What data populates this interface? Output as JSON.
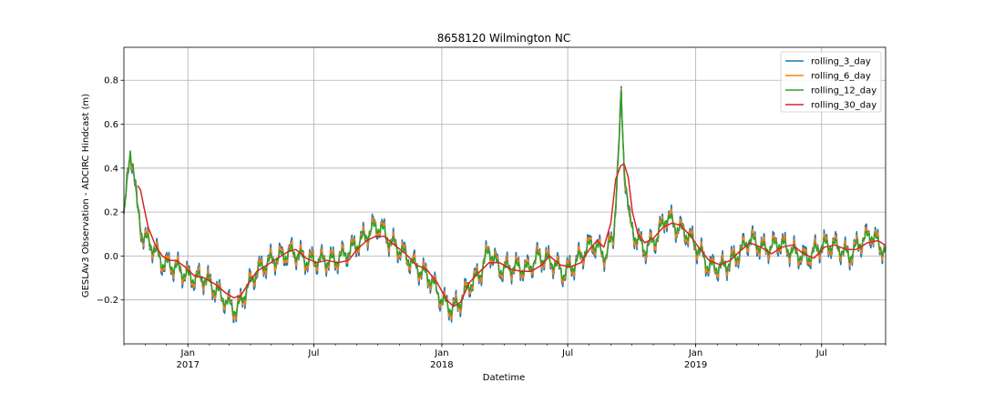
{
  "chart_data": {
    "type": "line",
    "title": "8658120 Wilmington NC",
    "xlabel": "Datetime",
    "ylabel": "GESLAv3 Observation - ADCIRC Hindcast (m)",
    "xlim": [
      "2016-10-01",
      "2019-10-01"
    ],
    "ylim": [
      -0.4,
      0.95
    ],
    "grid": true,
    "legend_position": "top-right",
    "y_ticks": [
      -0.2,
      0.0,
      0.2,
      0.4,
      0.6,
      0.8
    ],
    "y_tick_labels": [
      "−0.2",
      "0.0",
      "0.2",
      "0.4",
      "0.6",
      "0.8"
    ],
    "x_ticks": [
      {
        "date": "2017-01-01",
        "label": "Jan",
        "sublabel": "2017"
      },
      {
        "date": "2017-07-01",
        "label": "Jul",
        "sublabel": ""
      },
      {
        "date": "2018-01-01",
        "label": "Jan",
        "sublabel": "2018"
      },
      {
        "date": "2018-07-01",
        "label": "Jul",
        "sublabel": ""
      },
      {
        "date": "2019-01-01",
        "label": "Jan",
        "sublabel": "2019"
      },
      {
        "date": "2019-07-01",
        "label": "Jul",
        "sublabel": ""
      }
    ],
    "series": [
      {
        "name": "rolling_3_day",
        "color": "#1f77b4",
        "window_days": 3
      },
      {
        "name": "rolling_6_day",
        "color": "#ff7f0e",
        "window_days": 6
      },
      {
        "name": "rolling_12_day",
        "color": "#2ca02c",
        "window_days": 12
      },
      {
        "name": "rolling_30_day",
        "color": "#d62728",
        "window_days": 30
      }
    ],
    "trend": [
      [
        "2016-10-01",
        0.18
      ],
      [
        "2016-10-05",
        0.3
      ],
      [
        "2016-10-10",
        0.48
      ],
      [
        "2016-10-14",
        0.42
      ],
      [
        "2016-10-20",
        0.22
      ],
      [
        "2016-10-28",
        0.09
      ],
      [
        "2016-11-10",
        0.05
      ],
      [
        "2016-11-25",
        -0.03
      ],
      [
        "2016-12-15",
        -0.05
      ],
      [
        "2017-01-05",
        -0.1
      ],
      [
        "2017-01-25",
        -0.1
      ],
      [
        "2017-02-15",
        -0.17
      ],
      [
        "2017-03-01",
        -0.22
      ],
      [
        "2017-03-12",
        -0.25
      ],
      [
        "2017-03-25",
        -0.16
      ],
      [
        "2017-04-10",
        -0.07
      ],
      [
        "2017-04-25",
        -0.03
      ],
      [
        "2017-05-15",
        0.0
      ],
      [
        "2017-06-01",
        0.02
      ],
      [
        "2017-06-20",
        -0.02
      ],
      [
        "2017-07-10",
        -0.02
      ],
      [
        "2017-08-01",
        -0.02
      ],
      [
        "2017-08-20",
        0.02
      ],
      [
        "2017-09-10",
        0.08
      ],
      [
        "2017-09-25",
        0.13
      ],
      [
        "2017-10-05",
        0.13
      ],
      [
        "2017-10-20",
        0.06
      ],
      [
        "2017-11-05",
        0.02
      ],
      [
        "2017-11-25",
        -0.05
      ],
      [
        "2017-12-15",
        -0.1
      ],
      [
        "2018-01-01",
        -0.2
      ],
      [
        "2018-01-15",
        -0.24
      ],
      [
        "2018-01-25",
        -0.22
      ],
      [
        "2018-02-10",
        -0.13
      ],
      [
        "2018-02-25",
        -0.08
      ],
      [
        "2018-03-10",
        0.03
      ],
      [
        "2018-03-25",
        -0.06
      ],
      [
        "2018-04-15",
        -0.05
      ],
      [
        "2018-05-05",
        -0.06
      ],
      [
        "2018-05-20",
        0.0
      ],
      [
        "2018-06-10",
        -0.03
      ],
      [
        "2018-06-25",
        -0.08
      ],
      [
        "2018-07-10",
        -0.04
      ],
      [
        "2018-07-25",
        0.02
      ],
      [
        "2018-08-05",
        0.06
      ],
      [
        "2018-08-15",
        0.03
      ],
      [
        "2018-08-25",
        0.0
      ],
      [
        "2018-09-05",
        0.1
      ],
      [
        "2018-09-12",
        0.45
      ],
      [
        "2018-09-16",
        0.73
      ],
      [
        "2018-09-20",
        0.42
      ],
      [
        "2018-09-28",
        0.15
      ],
      [
        "2018-10-08",
        0.08
      ],
      [
        "2018-10-20",
        0.03
      ],
      [
        "2018-11-05",
        0.08
      ],
      [
        "2018-11-20",
        0.18
      ],
      [
        "2018-12-05",
        0.13
      ],
      [
        "2018-12-20",
        0.1
      ],
      [
        "2019-01-05",
        0.03
      ],
      [
        "2019-01-20",
        -0.05
      ],
      [
        "2019-02-10",
        -0.05
      ],
      [
        "2019-03-01",
        0.0
      ],
      [
        "2019-03-20",
        0.08
      ],
      [
        "2019-04-10",
        0.03
      ],
      [
        "2019-05-01",
        0.06
      ],
      [
        "2019-05-20",
        0.02
      ],
      [
        "2019-06-10",
        -0.01
      ],
      [
        "2019-07-01",
        0.05
      ],
      [
        "2019-07-20",
        0.05
      ],
      [
        "2019-08-10",
        0.0
      ],
      [
        "2019-08-25",
        0.06
      ],
      [
        "2019-09-10",
        0.1
      ],
      [
        "2019-09-30",
        0.02
      ]
    ],
    "rolling_30_day_values": [
      [
        "2016-10-21",
        0.32
      ],
      [
        "2016-10-25",
        0.3
      ],
      [
        "2016-10-30",
        0.22
      ],
      [
        "2016-11-05",
        0.13
      ],
      [
        "2016-11-15",
        0.05
      ],
      [
        "2016-11-25",
        0.0
      ],
      [
        "2016-12-05",
        -0.02
      ],
      [
        "2016-12-15",
        -0.02
      ],
      [
        "2016-12-28",
        -0.05
      ],
      [
        "2017-01-10",
        -0.09
      ],
      [
        "2017-01-25",
        -0.1
      ],
      [
        "2017-02-10",
        -0.13
      ],
      [
        "2017-02-25",
        -0.17
      ],
      [
        "2017-03-08",
        -0.19
      ],
      [
        "2017-03-18",
        -0.18
      ],
      [
        "2017-03-28",
        -0.13
      ],
      [
        "2017-04-10",
        -0.07
      ],
      [
        "2017-04-25",
        -0.04
      ],
      [
        "2017-05-10",
        -0.01
      ],
      [
        "2017-05-25",
        0.02
      ],
      [
        "2017-06-05",
        0.03
      ],
      [
        "2017-06-20",
        -0.01
      ],
      [
        "2017-07-05",
        -0.03
      ],
      [
        "2017-07-20",
        -0.02
      ],
      [
        "2017-08-05",
        -0.03
      ],
      [
        "2017-08-20",
        -0.02
      ],
      [
        "2017-09-01",
        0.03
      ],
      [
        "2017-09-15",
        0.07
      ],
      [
        "2017-09-28",
        0.09
      ],
      [
        "2017-10-10",
        0.09
      ],
      [
        "2017-10-25",
        0.05
      ],
      [
        "2017-11-10",
        0.01
      ],
      [
        "2017-11-25",
        -0.04
      ],
      [
        "2017-12-10",
        -0.06
      ],
      [
        "2017-12-25",
        -0.12
      ],
      [
        "2018-01-08",
        -0.2
      ],
      [
        "2018-01-18",
        -0.23
      ],
      [
        "2018-01-28",
        -0.21
      ],
      [
        "2018-02-10",
        -0.12
      ],
      [
        "2018-02-25",
        -0.07
      ],
      [
        "2018-03-10",
        -0.03
      ],
      [
        "2018-03-25",
        -0.03
      ],
      [
        "2018-04-10",
        -0.06
      ],
      [
        "2018-04-25",
        -0.07
      ],
      [
        "2018-05-10",
        -0.07
      ],
      [
        "2018-05-25",
        -0.04
      ],
      [
        "2018-06-05",
        0.0
      ],
      [
        "2018-06-20",
        -0.04
      ],
      [
        "2018-07-05",
        -0.05
      ],
      [
        "2018-07-20",
        -0.03
      ],
      [
        "2018-08-01",
        0.03
      ],
      [
        "2018-08-12",
        0.07
      ],
      [
        "2018-08-22",
        0.04
      ],
      [
        "2018-09-01",
        0.15
      ],
      [
        "2018-09-08",
        0.35
      ],
      [
        "2018-09-15",
        0.41
      ],
      [
        "2018-09-20",
        0.42
      ],
      [
        "2018-09-26",
        0.36
      ],
      [
        "2018-10-02",
        0.2
      ],
      [
        "2018-10-10",
        0.1
      ],
      [
        "2018-10-20",
        0.06
      ],
      [
        "2018-11-01",
        0.08
      ],
      [
        "2018-11-15",
        0.13
      ],
      [
        "2018-11-28",
        0.15
      ],
      [
        "2018-12-10",
        0.14
      ],
      [
        "2018-12-25",
        0.09
      ],
      [
        "2019-01-05",
        0.04
      ],
      [
        "2019-01-20",
        -0.02
      ],
      [
        "2019-02-05",
        -0.04
      ],
      [
        "2019-02-20",
        -0.02
      ],
      [
        "2019-03-05",
        0.02
      ],
      [
        "2019-03-20",
        0.06
      ],
      [
        "2019-04-05",
        0.04
      ],
      [
        "2019-04-20",
        0.01
      ],
      [
        "2019-05-05",
        0.04
      ],
      [
        "2019-05-20",
        0.05
      ],
      [
        "2019-06-05",
        0.01
      ],
      [
        "2019-06-20",
        -0.01
      ],
      [
        "2019-07-05",
        0.04
      ],
      [
        "2019-07-20",
        0.05
      ],
      [
        "2019-08-05",
        0.03
      ],
      [
        "2019-08-20",
        0.03
      ],
      [
        "2019-09-05",
        0.06
      ],
      [
        "2019-09-20",
        0.07
      ],
      [
        "2019-09-30",
        0.05
      ]
    ]
  }
}
